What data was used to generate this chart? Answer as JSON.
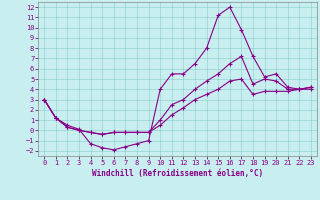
{
  "bg_color": "#c8eef0",
  "line_color": "#880088",
  "xlabel": "Windchill (Refroidissement éolien,°C)",
  "xlim": [
    -0.5,
    23.5
  ],
  "ylim": [
    -2.5,
    12.5
  ],
  "xticks": [
    0,
    1,
    2,
    3,
    4,
    5,
    6,
    7,
    8,
    9,
    10,
    11,
    12,
    13,
    14,
    15,
    16,
    17,
    18,
    19,
    20,
    21,
    22,
    23
  ],
  "yticks": [
    -2,
    -1,
    0,
    1,
    2,
    3,
    4,
    5,
    6,
    7,
    8,
    9,
    10,
    11,
    12
  ],
  "line1_x": [
    0,
    1,
    2,
    3,
    4,
    5,
    6,
    7,
    8,
    9,
    10,
    11,
    12,
    13,
    14,
    15,
    16,
    17,
    18,
    19,
    20,
    21,
    22,
    23
  ],
  "line1_y": [
    3.0,
    1.2,
    0.5,
    0.1,
    -1.3,
    -1.7,
    -1.9,
    -1.6,
    -1.3,
    -1.0,
    4.0,
    5.5,
    5.5,
    6.5,
    8.0,
    11.2,
    12.0,
    9.8,
    7.2,
    5.2,
    5.5,
    4.2,
    4.0,
    4.0
  ],
  "line2_x": [
    0,
    1,
    2,
    3,
    4,
    5,
    6,
    7,
    8,
    9,
    10,
    11,
    12,
    13,
    14,
    15,
    16,
    17,
    18,
    19,
    20,
    21,
    22,
    23
  ],
  "line2_y": [
    3.0,
    1.2,
    0.3,
    0.0,
    -0.2,
    -0.4,
    -0.2,
    -0.2,
    -0.2,
    -0.2,
    1.0,
    2.5,
    3.0,
    4.0,
    4.8,
    5.5,
    6.5,
    7.2,
    4.5,
    5.0,
    4.8,
    4.0,
    4.0,
    4.2
  ],
  "line3_x": [
    0,
    1,
    2,
    3,
    4,
    5,
    6,
    7,
    8,
    9,
    10,
    11,
    12,
    13,
    14,
    15,
    16,
    17,
    18,
    19,
    20,
    21,
    22,
    23
  ],
  "line3_y": [
    3.0,
    1.2,
    0.3,
    0.0,
    -0.2,
    -0.4,
    -0.2,
    -0.2,
    -0.2,
    -0.2,
    0.5,
    1.5,
    2.2,
    3.0,
    3.5,
    4.0,
    4.8,
    5.0,
    3.5,
    3.8,
    3.8,
    3.8,
    4.0,
    4.2
  ],
  "tick_fontsize": 5,
  "xlabel_fontsize": 5.5,
  "marker": "+",
  "marker_size": 3,
  "linewidth": 0.8
}
